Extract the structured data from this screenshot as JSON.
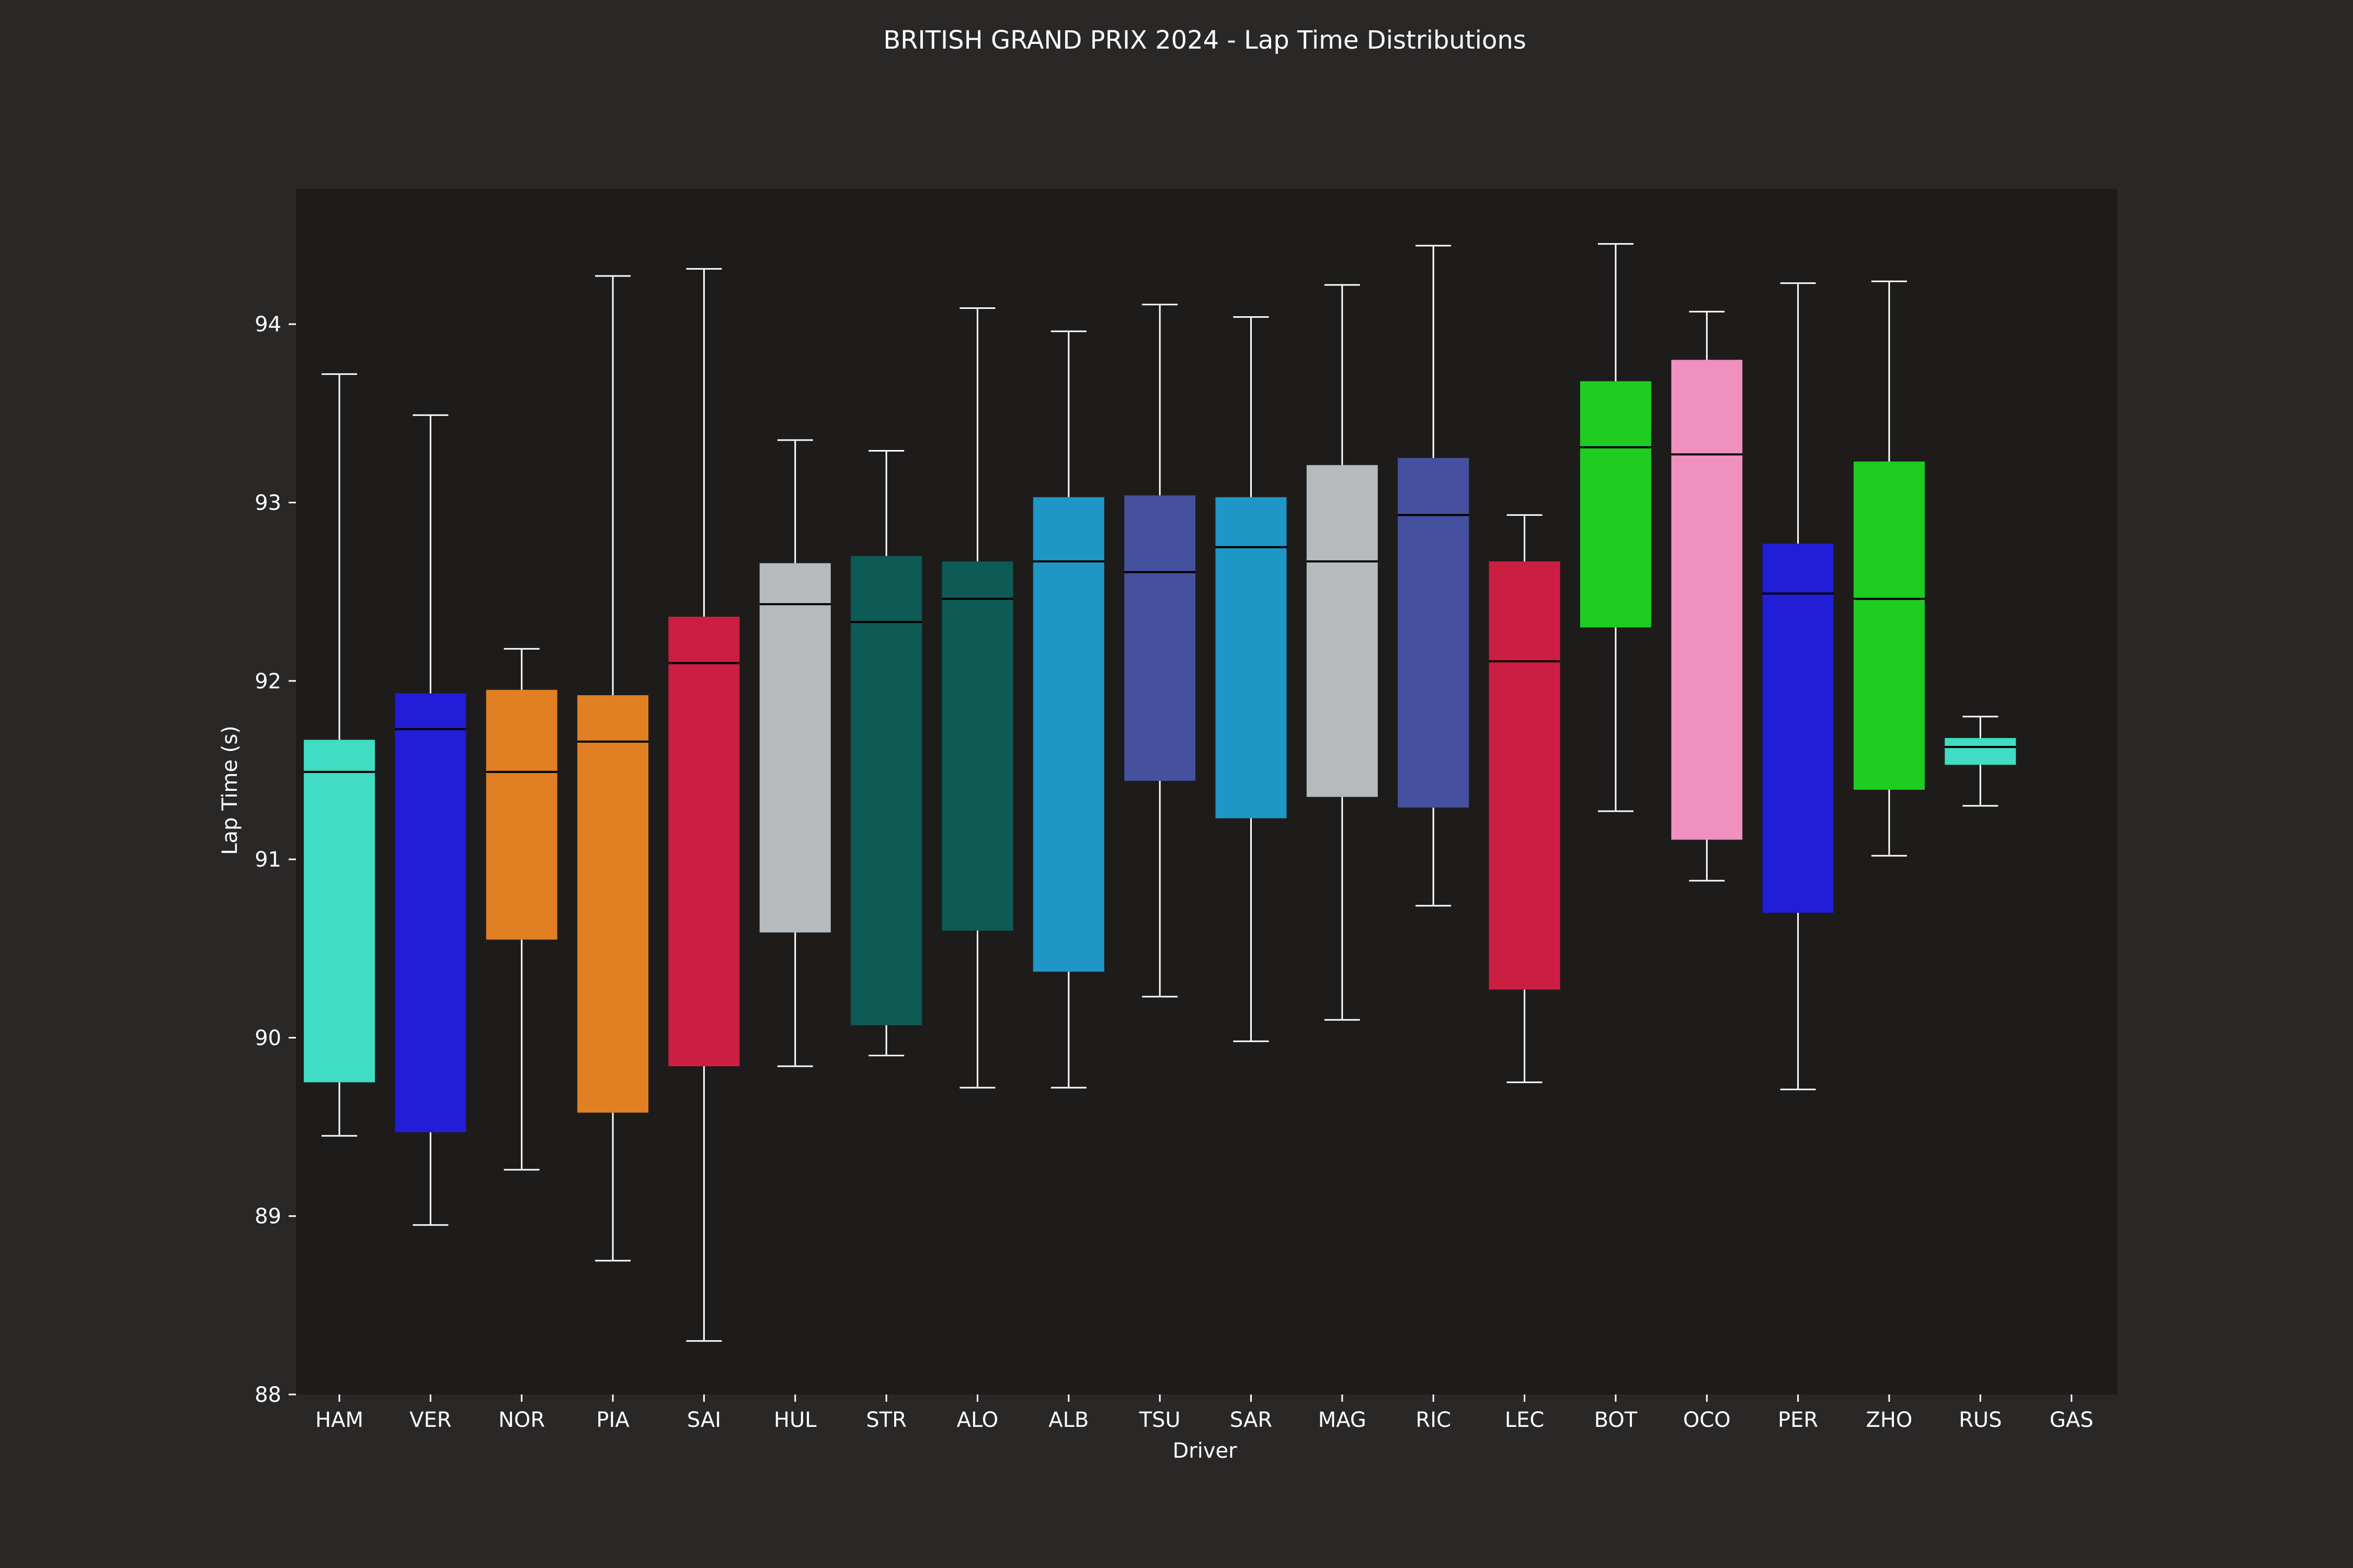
{
  "chart_data": {
    "type": "box",
    "title": "BRITISH GRAND PRIX 2024 - Lap Time Distributions",
    "xlabel": "Driver",
    "ylabel": "Lap Time (s)",
    "ylim": [
      88,
      94.75
    ],
    "yticks": [
      "88",
      "89",
      "90",
      "91",
      "92",
      "93",
      "94"
    ],
    "grid": false,
    "categories": [
      "HAM",
      "VER",
      "NOR",
      "PIA",
      "SAI",
      "HUL",
      "STR",
      "ALO",
      "ALB",
      "TSU",
      "SAR",
      "MAG",
      "RIC",
      "LEC",
      "BOT",
      "OCO",
      "PER",
      "ZHO",
      "RUS",
      "GAS"
    ],
    "series": [
      {
        "driver": "HAM",
        "whisker_low": 89.45,
        "q1": 89.75,
        "median": 91.49,
        "q3": 91.67,
        "whisker_high": 93.72,
        "color": "#40dcc4"
      },
      {
        "driver": "VER",
        "whisker_low": 88.95,
        "q1": 89.47,
        "median": 91.73,
        "q3": 91.93,
        "whisker_high": 93.49,
        "color": "#221dd6"
      },
      {
        "driver": "NOR",
        "whisker_low": 89.26,
        "q1": 90.55,
        "median": 91.49,
        "q3": 91.95,
        "whisker_high": 92.18,
        "color": "#e08022"
      },
      {
        "driver": "PIA",
        "whisker_low": 88.75,
        "q1": 89.58,
        "median": 91.66,
        "q3": 91.92,
        "whisker_high": 94.27,
        "color": "#e08022"
      },
      {
        "driver": "SAI",
        "whisker_low": 88.3,
        "q1": 89.84,
        "median": 92.1,
        "q3": 92.36,
        "whisker_high": 94.31,
        "color": "#cc1e42"
      },
      {
        "driver": "HUL",
        "whisker_low": 89.84,
        "q1": 90.59,
        "median": 92.43,
        "q3": 92.66,
        "whisker_high": 93.35,
        "color": "#b7babd"
      },
      {
        "driver": "STR",
        "whisker_low": 89.9,
        "q1": 90.07,
        "median": 92.33,
        "q3": 92.7,
        "whisker_high": 93.29,
        "color": "#0e5a55"
      },
      {
        "driver": "ALO",
        "whisker_low": 89.72,
        "q1": 90.6,
        "median": 92.46,
        "q3": 92.67,
        "whisker_high": 94.09,
        "color": "#0e5a55"
      },
      {
        "driver": "ALB",
        "whisker_low": 89.72,
        "q1": 90.37,
        "median": 92.67,
        "q3": 93.03,
        "whisker_high": 93.96,
        "color": "#1e96c6"
      },
      {
        "driver": "TSU",
        "whisker_low": 90.23,
        "q1": 91.44,
        "median": 92.61,
        "q3": 93.04,
        "whisker_high": 94.11,
        "color": "#45519e"
      },
      {
        "driver": "SAR",
        "whisker_low": 89.98,
        "q1": 91.23,
        "median": 92.75,
        "q3": 93.03,
        "whisker_high": 94.04,
        "color": "#1e96c6"
      },
      {
        "driver": "MAG",
        "whisker_low": 90.1,
        "q1": 91.35,
        "median": 92.67,
        "q3": 93.21,
        "whisker_high": 94.22,
        "color": "#b7babd"
      },
      {
        "driver": "RIC",
        "whisker_low": 90.74,
        "q1": 91.29,
        "median": 92.93,
        "q3": 93.25,
        "whisker_high": 94.44,
        "color": "#45519e"
      },
      {
        "driver": "LEC",
        "whisker_low": 89.75,
        "q1": 90.27,
        "median": 92.11,
        "q3": 92.67,
        "whisker_high": 92.93,
        "color": "#cc1e42"
      },
      {
        "driver": "BOT",
        "whisker_low": 91.27,
        "q1": 92.3,
        "median": 93.31,
        "q3": 93.68,
        "whisker_high": 94.45,
        "color": "#1ecc22"
      },
      {
        "driver": "OCO",
        "whisker_low": 90.88,
        "q1": 91.11,
        "median": 93.27,
        "q3": 93.8,
        "whisker_high": 94.07,
        "color": "#f090be"
      },
      {
        "driver": "PER",
        "whisker_low": 89.71,
        "q1": 90.7,
        "median": 92.49,
        "q3": 92.77,
        "whisker_high": 94.23,
        "color": "#221dd6"
      },
      {
        "driver": "ZHO",
        "whisker_low": 91.02,
        "q1": 91.39,
        "median": 92.46,
        "q3": 93.23,
        "whisker_high": 94.24,
        "color": "#1ecc22"
      },
      {
        "driver": "RUS",
        "whisker_low": 91.3,
        "q1": 91.53,
        "median": 91.63,
        "q3": 91.68,
        "whisker_high": 91.8,
        "color": "#40dcc4"
      },
      {
        "driver": "GAS",
        "whisker_low": null,
        "q1": null,
        "median": null,
        "q3": null,
        "whisker_high": null,
        "color": "#f090be"
      }
    ],
    "colors": {
      "figure_background": "#2a2727",
      "plot_background": "#1e1c1b",
      "text": "#ffffff",
      "whisker": "#ffffff",
      "median": "#000000"
    }
  }
}
